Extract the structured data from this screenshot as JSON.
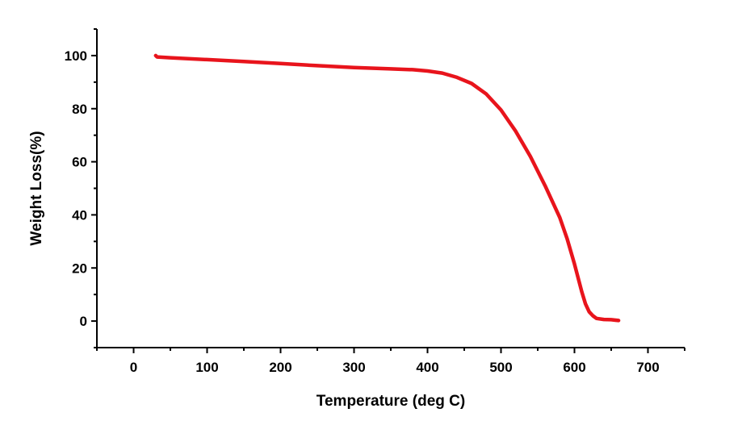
{
  "chart_data": {
    "type": "line",
    "title": "",
    "xlabel": "Temperature (deg C)",
    "ylabel": "Weight Loss(%)",
    "xlim": [
      -50,
      750
    ],
    "ylim": [
      -10,
      110
    ],
    "xticks": [
      0,
      100,
      200,
      300,
      400,
      500,
      600,
      700
    ],
    "yticks": [
      0,
      20,
      40,
      60,
      80,
      100
    ],
    "xtick_labels": [
      "0",
      "100",
      "200",
      "300",
      "400",
      "500",
      "600",
      "700"
    ],
    "ytick_labels": [
      "0",
      "20",
      "40",
      "60",
      "80",
      "100"
    ],
    "grid": false,
    "legend": "none",
    "series": [
      {
        "color": "#e8141c",
        "x": [
          30,
          32,
          50,
          100,
          150,
          200,
          250,
          300,
          350,
          380,
          400,
          420,
          440,
          460,
          480,
          500,
          520,
          540,
          560,
          580,
          590,
          600,
          610,
          615,
          620,
          625,
          630,
          640,
          650,
          660
        ],
        "y": [
          100,
          99.5,
          99.2,
          98.5,
          97.8,
          97,
          96.2,
          95.5,
          95,
          94.7,
          94.2,
          93.4,
          91.8,
          89.5,
          85.5,
          79.5,
          71.5,
          62,
          51,
          39,
          31,
          21.5,
          11,
          6.5,
          3.5,
          2,
          1,
          0.6,
          0.5,
          0.2
        ]
      }
    ]
  }
}
